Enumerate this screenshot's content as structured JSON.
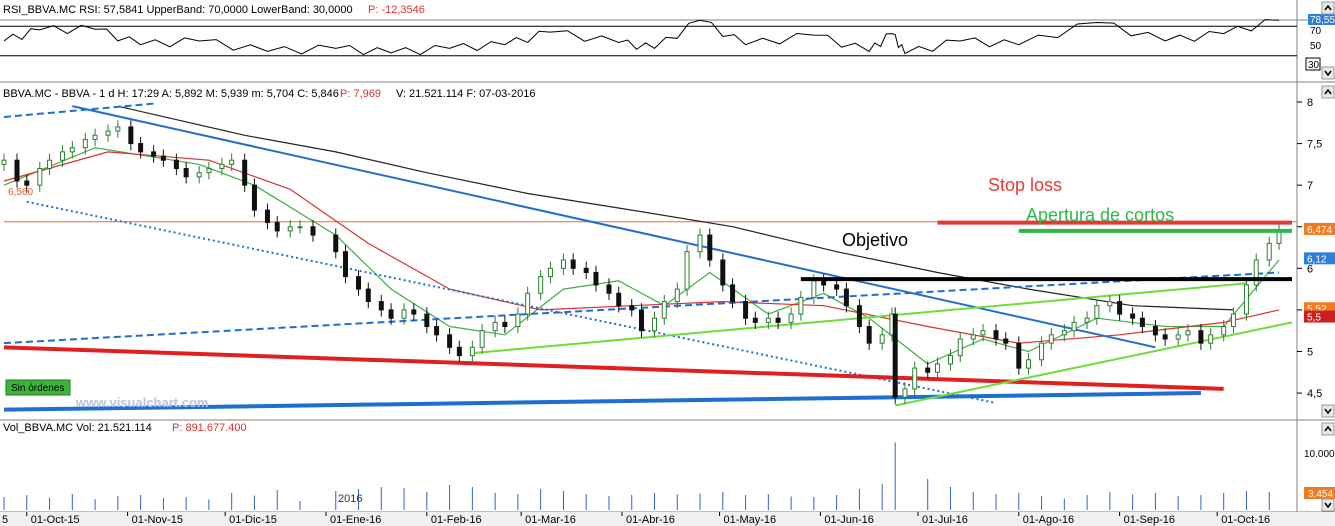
{
  "rsi_panel": {
    "header": "RSI_BBVA.MC  RSI: 57,5841  UpperBand: 70,0000  LowerBand: 30,0000",
    "header_p": "P: -12,3546",
    "badge": "78,55",
    "level_70": "70",
    "level_50": "50",
    "level_30": "30"
  },
  "price_panel": {
    "header": "BBVA.MC - BBVA -  1 d  H: 17:29  A: 5,892  M: 5,939  m: 5,704  C: 5,846",
    "header_p": "P: 7,969",
    "header_rest": "V: 21.521.114  F: 07-03-2016",
    "hline_label": "6,560",
    "badges": [
      "6,474",
      "6,12",
      "5,52",
      "5,5"
    ],
    "watermark": "www.visualchart.com",
    "status_box": "Sin órdenes"
  },
  "volume_panel": {
    "header": "Vol_BBVA.MC  Vol: 21.521.114",
    "header_p": "P: 891.677.400",
    "y_label": "10.000",
    "badge": "3.454",
    "year_label": "2016"
  },
  "x_axis": {
    "left_label": "5",
    "labels": [
      "01-Oct-15",
      "01-Nov-15",
      "01-Dic-15",
      "01-Ene-16",
      "01-Feb-16",
      "01-Mar-16",
      "01-Abr-16",
      "01-May-16",
      "01-Jun-16",
      "01-Jul-16",
      "01-Ago-16",
      "01-Sep-16",
      "01-Oct-16"
    ]
  },
  "colors": {
    "up": "#2e7d32",
    "down": "#111111",
    "stop_loss": "#e53935",
    "opening": "#2eb84a",
    "target": "#000000",
    "trend_blue": "#1f6fd1",
    "trend_green": "#6fdc3a",
    "trend_red": "#e02020",
    "ma_green": "#3fae3f",
    "ma_red": "#d83030",
    "ma_black": "#222222",
    "volume": "#3060c8",
    "badge_orange": "#f47a1f"
  },
  "chart_data": {
    "type": "candlestick",
    "symbol": "BBVA.MC",
    "timeframe": "1 d",
    "x_start": "2015-09-24",
    "x_end": "2016-10-24",
    "ylim": [
      4.2,
      8.0
    ],
    "y_ticks": [
      4.5,
      5,
      5.5,
      6,
      6.5,
      7,
      7.5,
      8
    ],
    "horizontal_line": 6.56,
    "close_series": [
      [
        "2015-09-24",
        7.3
      ],
      [
        "2015-09-28",
        7.05
      ],
      [
        "2015-10-01",
        7.0
      ],
      [
        "2015-10-05",
        7.2
      ],
      [
        "2015-10-08",
        7.3
      ],
      [
        "2015-10-12",
        7.4
      ],
      [
        "2015-10-15",
        7.45
      ],
      [
        "2015-10-19",
        7.55
      ],
      [
        "2015-10-22",
        7.6
      ],
      [
        "2015-10-26",
        7.65
      ],
      [
        "2015-10-29",
        7.7
      ],
      [
        "2015-11-02",
        7.5
      ],
      [
        "2015-11-05",
        7.4
      ],
      [
        "2015-11-09",
        7.35
      ],
      [
        "2015-11-12",
        7.3
      ],
      [
        "2015-11-16",
        7.2
      ],
      [
        "2015-11-19",
        7.1
      ],
      [
        "2015-11-23",
        7.15
      ],
      [
        "2015-11-26",
        7.2
      ],
      [
        "2015-11-30",
        7.25
      ],
      [
        "2015-12-03",
        7.3
      ],
      [
        "2015-12-07",
        7.0
      ],
      [
        "2015-12-10",
        6.7
      ],
      [
        "2015-12-14",
        6.55
      ],
      [
        "2015-12-17",
        6.45
      ],
      [
        "2015-12-21",
        6.5
      ],
      [
        "2015-12-24",
        6.5
      ],
      [
        "2015-12-28",
        6.4
      ],
      [
        "2016-01-04",
        6.2
      ],
      [
        "2016-01-07",
        5.9
      ],
      [
        "2016-01-11",
        5.75
      ],
      [
        "2016-01-14",
        5.6
      ],
      [
        "2016-01-18",
        5.5
      ],
      [
        "2016-01-21",
        5.4
      ],
      [
        "2016-01-25",
        5.5
      ],
      [
        "2016-01-28",
        5.45
      ],
      [
        "2016-02-01",
        5.3
      ],
      [
        "2016-02-04",
        5.2
      ],
      [
        "2016-02-08",
        5.05
      ],
      [
        "2016-02-11",
        4.95
      ],
      [
        "2016-02-15",
        5.05
      ],
      [
        "2016-02-18",
        5.25
      ],
      [
        "2016-02-22",
        5.35
      ],
      [
        "2016-02-25",
        5.3
      ],
      [
        "2016-02-29",
        5.45
      ],
      [
        "2016-03-03",
        5.7
      ],
      [
        "2016-03-07",
        5.9
      ],
      [
        "2016-03-10",
        6.0
      ],
      [
        "2016-03-14",
        6.1
      ],
      [
        "2016-03-17",
        6.0
      ],
      [
        "2016-03-21",
        5.95
      ],
      [
        "2016-03-24",
        5.8
      ],
      [
        "2016-03-28",
        5.7
      ],
      [
        "2016-03-31",
        5.55
      ],
      [
        "2016-04-04",
        5.5
      ],
      [
        "2016-04-07",
        5.25
      ],
      [
        "2016-04-11",
        5.4
      ],
      [
        "2016-04-14",
        5.6
      ],
      [
        "2016-04-18",
        5.75
      ],
      [
        "2016-04-21",
        6.2
      ],
      [
        "2016-04-25",
        6.4
      ],
      [
        "2016-04-28",
        6.1
      ],
      [
        "2016-05-02",
        5.8
      ],
      [
        "2016-05-05",
        5.6
      ],
      [
        "2016-05-09",
        5.4
      ],
      [
        "2016-05-12",
        5.35
      ],
      [
        "2016-05-16",
        5.4
      ],
      [
        "2016-05-19",
        5.35
      ],
      [
        "2016-05-23",
        5.45
      ],
      [
        "2016-05-26",
        5.65
      ],
      [
        "2016-05-30",
        5.85
      ],
      [
        "2016-06-02",
        5.8
      ],
      [
        "2016-06-06",
        5.75
      ],
      [
        "2016-06-09",
        5.55
      ],
      [
        "2016-06-13",
        5.3
      ],
      [
        "2016-06-16",
        5.1
      ],
      [
        "2016-06-20",
        5.2
      ],
      [
        "2016-06-23",
        5.45
      ],
      [
        "2016-06-24",
        4.45
      ],
      [
        "2016-06-27",
        4.55
      ],
      [
        "2016-06-30",
        4.8
      ],
      [
        "2016-07-04",
        4.75
      ],
      [
        "2016-07-07",
        4.85
      ],
      [
        "2016-07-11",
        4.95
      ],
      [
        "2016-07-14",
        5.15
      ],
      [
        "2016-07-18",
        5.2
      ],
      [
        "2016-07-21",
        5.25
      ],
      [
        "2016-07-25",
        5.15
      ],
      [
        "2016-07-28",
        5.1
      ],
      [
        "2016-08-01",
        4.8
      ],
      [
        "2016-08-04",
        4.9
      ],
      [
        "2016-08-08",
        5.1
      ],
      [
        "2016-08-11",
        5.2
      ],
      [
        "2016-08-15",
        5.25
      ],
      [
        "2016-08-18",
        5.35
      ],
      [
        "2016-08-22",
        5.4
      ],
      [
        "2016-08-25",
        5.55
      ],
      [
        "2016-08-29",
        5.6
      ],
      [
        "2016-09-01",
        5.45
      ],
      [
        "2016-09-05",
        5.4
      ],
      [
        "2016-09-08",
        5.3
      ],
      [
        "2016-09-12",
        5.2
      ],
      [
        "2016-09-15",
        5.15
      ],
      [
        "2016-09-19",
        5.2
      ],
      [
        "2016-09-22",
        5.25
      ],
      [
        "2016-09-26",
        5.1
      ],
      [
        "2016-09-29",
        5.2
      ],
      [
        "2016-10-03",
        5.3
      ],
      [
        "2016-10-06",
        5.45
      ],
      [
        "2016-10-10",
        5.8
      ],
      [
        "2016-10-13",
        6.1
      ],
      [
        "2016-10-17",
        6.3
      ],
      [
        "2016-10-20",
        6.45
      ]
    ],
    "moving_averages": [
      {
        "color_key": "ma_green",
        "points": [
          [
            "2015-09-24",
            7.0
          ],
          [
            "2015-10-22",
            7.45
          ],
          [
            "2015-11-23",
            7.25
          ],
          [
            "2015-12-10",
            7.0
          ],
          [
            "2016-01-04",
            6.4
          ],
          [
            "2016-01-21",
            5.75
          ],
          [
            "2016-02-08",
            5.3
          ],
          [
            "2016-02-25",
            5.2
          ],
          [
            "2016-03-14",
            5.75
          ],
          [
            "2016-03-31",
            5.85
          ],
          [
            "2016-04-14",
            5.55
          ],
          [
            "2016-04-28",
            5.95
          ],
          [
            "2016-05-16",
            5.45
          ],
          [
            "2016-06-02",
            5.7
          ],
          [
            "2016-06-16",
            5.4
          ],
          [
            "2016-07-04",
            4.85
          ],
          [
            "2016-07-21",
            5.15
          ],
          [
            "2016-08-04",
            5.0
          ],
          [
            "2016-08-25",
            5.4
          ],
          [
            "2016-09-15",
            5.3
          ],
          [
            "2016-10-03",
            5.3
          ],
          [
            "2016-10-20",
            6.1
          ]
        ]
      },
      {
        "color_key": "ma_red",
        "points": [
          [
            "2015-09-24",
            7.05
          ],
          [
            "2015-10-26",
            7.4
          ],
          [
            "2015-11-26",
            7.3
          ],
          [
            "2015-12-21",
            6.95
          ],
          [
            "2016-01-14",
            6.3
          ],
          [
            "2016-02-08",
            5.75
          ],
          [
            "2016-03-07",
            5.5
          ],
          [
            "2016-04-04",
            5.55
          ],
          [
            "2016-05-02",
            5.6
          ],
          [
            "2016-06-02",
            5.55
          ],
          [
            "2016-07-04",
            5.3
          ],
          [
            "2016-08-01",
            5.1
          ],
          [
            "2016-09-01",
            5.2
          ],
          [
            "2016-10-03",
            5.35
          ],
          [
            "2016-10-20",
            5.5
          ]
        ]
      },
      {
        "color_key": "ma_black",
        "points": [
          [
            "2015-10-29",
            7.95
          ],
          [
            "2015-12-07",
            7.6
          ],
          [
            "2016-01-04",
            7.4
          ],
          [
            "2016-02-01",
            7.15
          ],
          [
            "2016-03-03",
            6.9
          ],
          [
            "2016-04-04",
            6.7
          ],
          [
            "2016-05-05",
            6.5
          ],
          [
            "2016-06-06",
            6.2
          ],
          [
            "2016-07-07",
            5.95
          ],
          [
            "2016-08-04",
            5.75
          ],
          [
            "2016-09-05",
            5.55
          ],
          [
            "2016-10-06",
            5.5
          ]
        ]
      }
    ],
    "trendlines": [
      {
        "color_key": "trend_blue",
        "style": "solid",
        "from": [
          "2015-10-15",
          7.95
        ],
        "to": [
          "2016-09-12",
          5.05
        ]
      },
      {
        "color_key": "trend_blue",
        "style": "dashed",
        "from": [
          "2015-09-24",
          7.82
        ],
        "to": [
          "2015-11-09",
          7.98
        ]
      },
      {
        "color_key": "trend_blue",
        "style": "dashed",
        "from": [
          "2015-09-24",
          5.1
        ],
        "to": [
          "2016-10-20",
          5.95
        ]
      },
      {
        "color_key": "trend_blue",
        "style": "dotted",
        "from": [
          "2015-10-01",
          6.8
        ],
        "to": [
          "2016-07-25",
          4.38
        ]
      },
      {
        "color_key": "trend_blue",
        "style": "solid",
        "from": [
          "2015-09-24",
          4.3
        ],
        "to": [
          "2016-09-26",
          4.5
        ],
        "width": 4
      },
      {
        "color_key": "trend_red",
        "style": "solid",
        "from": [
          "2015-09-24",
          5.05
        ],
        "to": [
          "2016-10-03",
          4.55
        ],
        "width": 4
      },
      {
        "color_key": "trend_green",
        "style": "solid",
        "from": [
          "2016-02-15",
          4.98
        ],
        "to": [
          "2016-10-10",
          5.82
        ]
      },
      {
        "color_key": "trend_green",
        "style": "solid",
        "from": [
          "2016-06-24",
          4.35
        ],
        "to": [
          "2016-10-24",
          5.35
        ]
      }
    ],
    "levels": [
      {
        "label": "Stop loss",
        "value": 6.55,
        "from": "2016-07-07",
        "to": "2016-10-24",
        "color_key": "stop_loss"
      },
      {
        "label": "Apertura de cortos",
        "value": 6.45,
        "from": "2016-08-01",
        "to": "2016-10-24",
        "color_key": "opening"
      },
      {
        "label": "Objetivo",
        "value": 5.87,
        "from": "2016-05-26",
        "to": "2016-10-24",
        "color_key": "target"
      }
    ],
    "rsi": {
      "upper": 70,
      "lower": 30,
      "last": 57.5841,
      "values": [
        [
          "2015-09-24",
          50
        ],
        [
          "2015-10-05",
          65
        ],
        [
          "2015-10-22",
          66
        ],
        [
          "2015-11-05",
          45
        ],
        [
          "2015-11-23",
          50
        ],
        [
          "2015-12-14",
          36
        ],
        [
          "2016-01-04",
          40
        ],
        [
          "2016-01-21",
          34
        ],
        [
          "2016-02-08",
          40
        ],
        [
          "2016-02-25",
          45
        ],
        [
          "2016-03-10",
          62
        ],
        [
          "2016-03-31",
          48
        ],
        [
          "2016-04-11",
          40
        ],
        [
          "2016-04-25",
          78
        ],
        [
          "2016-05-09",
          45
        ],
        [
          "2016-05-30",
          58
        ],
        [
          "2016-06-16",
          36
        ],
        [
          "2016-06-23",
          60
        ],
        [
          "2016-06-27",
          33
        ],
        [
          "2016-07-14",
          50
        ],
        [
          "2016-08-01",
          45
        ],
        [
          "2016-08-25",
          75
        ],
        [
          "2016-09-15",
          50
        ],
        [
          "2016-10-03",
          60
        ],
        [
          "2016-10-20",
          78
        ]
      ]
    },
    "volume": {
      "scale_max": 14000,
      "bars": [
        [
          "2015-09-24",
          2600
        ],
        [
          "2015-10-01",
          3000
        ],
        [
          "2015-10-08",
          2500
        ],
        [
          "2015-10-15",
          3200
        ],
        [
          "2015-10-22",
          2200
        ],
        [
          "2015-10-29",
          2800
        ],
        [
          "2015-11-05",
          3000
        ],
        [
          "2015-11-12",
          2400
        ],
        [
          "2015-11-19",
          2600
        ],
        [
          "2015-11-26",
          2100
        ],
        [
          "2015-12-03",
          3400
        ],
        [
          "2015-12-10",
          2900
        ],
        [
          "2015-12-17",
          4000
        ],
        [
          "2015-12-24",
          1800
        ],
        [
          "2016-01-04",
          3800
        ],
        [
          "2016-01-11",
          4200
        ],
        [
          "2016-01-18",
          4600
        ],
        [
          "2016-01-25",
          4400
        ],
        [
          "2016-02-01",
          3600
        ],
        [
          "2016-02-08",
          5000
        ],
        [
          "2016-02-15",
          4600
        ],
        [
          "2016-02-22",
          3400
        ],
        [
          "2016-02-29",
          3200
        ],
        [
          "2016-03-07",
          4200
        ],
        [
          "2016-03-14",
          3800
        ],
        [
          "2016-03-21",
          3200
        ],
        [
          "2016-03-28",
          2800
        ],
        [
          "2016-04-04",
          3000
        ],
        [
          "2016-04-11",
          3400
        ],
        [
          "2016-04-18",
          3100
        ],
        [
          "2016-04-25",
          3300
        ],
        [
          "2016-05-02",
          3600
        ],
        [
          "2016-05-09",
          3000
        ],
        [
          "2016-05-16",
          3200
        ],
        [
          "2016-05-23",
          2700
        ],
        [
          "2016-05-30",
          2600
        ],
        [
          "2016-06-06",
          3000
        ],
        [
          "2016-06-13",
          4200
        ],
        [
          "2016-06-20",
          5200
        ],
        [
          "2016-06-24",
          13500
        ],
        [
          "2016-07-04",
          6200
        ],
        [
          "2016-07-11",
          4600
        ],
        [
          "2016-07-18",
          3600
        ],
        [
          "2016-07-25",
          3200
        ],
        [
          "2016-08-01",
          3400
        ],
        [
          "2016-08-08",
          2800
        ],
        [
          "2016-08-15",
          2300
        ],
        [
          "2016-08-22",
          3000
        ],
        [
          "2016-08-29",
          3600
        ],
        [
          "2016-09-05",
          3100
        ],
        [
          "2016-09-12",
          3400
        ],
        [
          "2016-09-19",
          2800
        ],
        [
          "2016-09-26",
          3000
        ],
        [
          "2016-10-03",
          3400
        ],
        [
          "2016-10-10",
          3800
        ],
        [
          "2016-10-17",
          3600
        ]
      ]
    }
  }
}
